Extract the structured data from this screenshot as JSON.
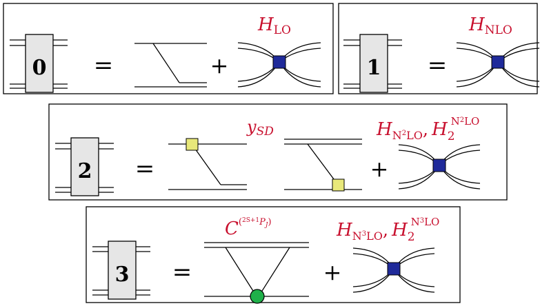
{
  "panels": [
    {
      "order": "0",
      "equals": "=",
      "plus": "+",
      "coupling": {
        "main": "H",
        "sub": "LO"
      }
    },
    {
      "order": "1",
      "equals": "=",
      "coupling": {
        "main": "H",
        "sub": "NLO"
      }
    },
    {
      "order": "2",
      "equals": "=",
      "plus": "+",
      "vertex_label": "y",
      "vertex_label_sub": "SD",
      "coupling": {
        "main1": "H",
        "sub1a": "N",
        "sup1": "2",
        "sub1b": "LO",
        "sep": ",",
        "main2": "H",
        "sub2": "2",
        "sup2a": "N",
        "sup2b": "2",
        "sup2c": "LO"
      }
    },
    {
      "order": "3",
      "equals": "=",
      "plus": "+",
      "vertex_label": {
        "main": "C",
        "paren_open": "(",
        "pre_sup": "2S+1",
        "P": "P",
        "sub": "J",
        "paren_close": ")"
      },
      "coupling": {
        "main1": "H",
        "sub1a": "N",
        "sup1": "3",
        "sub1b": "LO",
        "sep": ",",
        "main2": "H",
        "sub2": "2",
        "sup2a": "N",
        "sup2b": "3",
        "sup2c": "LO"
      }
    }
  ],
  "colors": {
    "text_red": "#c8102e",
    "contact_blue": "#1f2a9a",
    "vertex_yellow": "#e8e87a",
    "vertex_green": "#1fb04a",
    "order_box_fill": "#e6e6e6"
  }
}
